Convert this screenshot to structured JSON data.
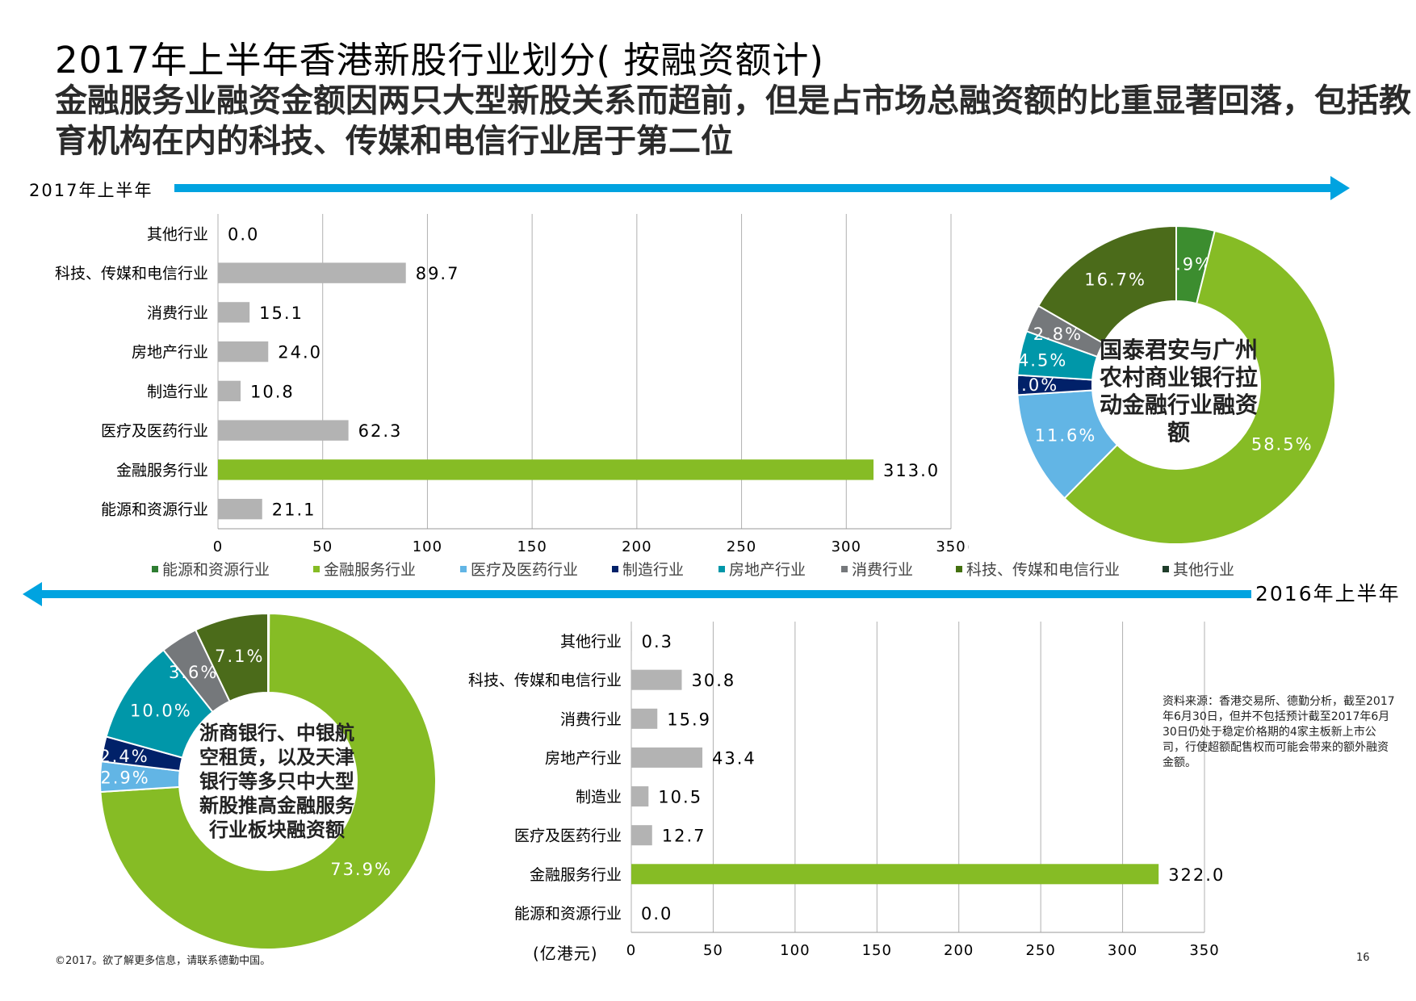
{
  "title": "2017年上半年香港新股行业划分( 按融资额计)",
  "subtitle": "金融服务业融资金额因两只大型新股关系而超前，但是占市场总融资额的比重显著回落，包括教育机构在内的科技、传媒和电信行业居于第二位",
  "section_2017_label": "2017年上半年",
  "section_2016_label": "2016年上半年",
  "unit_label_2017": "(亿港元)",
  "unit_label_2016": "(亿港元)",
  "legend": [
    {
      "name": "能源和资源行业",
      "color": "#2e7d32"
    },
    {
      "name": "金融服务行业",
      "color": "#86bc25"
    },
    {
      "name": "医疗及医药行业",
      "color": "#62b5e5"
    },
    {
      "name": "制造行业",
      "color": "#012169"
    },
    {
      "name": "房地产行业",
      "color": "#0097a9"
    },
    {
      "name": "消费行业",
      "color": "#75787b"
    },
    {
      "name": "科技、传媒和电信行业",
      "color": "#43700f"
    },
    {
      "name": "其他行业",
      "color": "#1f3d2a"
    }
  ],
  "center_2017": "国泰君安与广州农村商业银行拉动金融行业融资额",
  "center_2016": "浙商银行、中银航空租赁，以及天津银行等多只中大型新股推高金融服务行业板块融资额",
  "source_note": "资料来源：香港交易所、德勤分析，截至2017年6月30日，但并不包括预计截至2017年6月30日仍处于稳定价格期的4家主板新上市公司，行使超额配售权而可能会带来的额外融资金额。",
  "footer": "©2017。欲了解更多信息，请联系德勤中国。",
  "page_number": "16",
  "chart_data": [
    {
      "type": "bar",
      "orientation": "horizontal",
      "title": "2017年上半年",
      "categories": [
        "其他行业",
        "科技、传媒和电信行业",
        "消费行业",
        "房地产行业",
        "制造行业",
        "医疗及医药行业",
        "金融服务行业",
        "能源和资源行业"
      ],
      "values": [
        0.0,
        89.7,
        15.1,
        24.0,
        10.8,
        62.3,
        313.0,
        21.1
      ],
      "labels": [
        "0.0",
        "89.7",
        "15.1",
        "24.0",
        "10.8",
        "62.3",
        "313.0",
        "21.1"
      ],
      "highlight_category": "金融服务行业",
      "bar_color": "#b3b3b3",
      "highlight_color": "#86bc25",
      "xlim": [
        0,
        350
      ],
      "xticks": [
        0,
        50,
        100,
        150,
        200,
        250,
        300,
        350
      ],
      "xlabel": "(亿港元)",
      "grid": true
    },
    {
      "type": "pie",
      "style": "donut",
      "title": "2017年上半年",
      "slices": [
        {
          "name": "能源和资源行业",
          "value": 3.9,
          "label": "3.9%",
          "color": "#3c8d2f"
        },
        {
          "name": "金融服务行业",
          "value": 58.5,
          "label": "58.5%",
          "color": "#86bc25"
        },
        {
          "name": "医疗及医药行业",
          "value": 11.6,
          "label": "11.6%",
          "color": "#62b5e5"
        },
        {
          "name": "制造行业",
          "value": 2.0,
          "label": "2.0%",
          "color": "#012169"
        },
        {
          "name": "房地产行业",
          "value": 4.5,
          "label": "4.5%",
          "color": "#0097a9"
        },
        {
          "name": "消费行业",
          "value": 2.8,
          "label": "2.8%",
          "color": "#75787b"
        },
        {
          "name": "科技、传媒和电信行业",
          "value": 16.7,
          "label": "16.7%",
          "color": "#4b6b1a"
        },
        {
          "name": "其他行业",
          "value": 0.0,
          "label": "",
          "color": "#1f3d2a"
        }
      ]
    },
    {
      "type": "pie",
      "style": "donut",
      "title": "2016年上半年",
      "slices": [
        {
          "name": "其他行业",
          "value": 0.1,
          "label": "0.1%",
          "color": "#1f3d2a"
        },
        {
          "name": "金融服务行业",
          "value": 73.9,
          "label": "73.9%",
          "color": "#86bc25"
        },
        {
          "name": "医疗及医药行业",
          "value": 2.9,
          "label": "2.9%",
          "color": "#62b5e5"
        },
        {
          "name": "制造行业",
          "value": 2.4,
          "label": "2.4%",
          "color": "#012169"
        },
        {
          "name": "房地产行业",
          "value": 10.0,
          "label": "10.0%",
          "color": "#0097a9"
        },
        {
          "name": "消费行业",
          "value": 3.6,
          "label": "3.6%",
          "color": "#75787b"
        },
        {
          "name": "科技、传媒和电信行业",
          "value": 7.1,
          "label": "7.1%",
          "color": "#4b6b1a"
        },
        {
          "name": "能源和资源行业",
          "value": 0.0,
          "label": "",
          "color": "#3c8d2f"
        }
      ]
    },
    {
      "type": "bar",
      "orientation": "horizontal",
      "title": "2016年上半年",
      "categories": [
        "其他行业",
        "科技、传媒和电信行业",
        "消费行业",
        "房地产行业",
        "制造业",
        "医疗及医药行业",
        "金融服务行业",
        "能源和资源行业"
      ],
      "values": [
        0.3,
        30.8,
        15.9,
        43.4,
        10.5,
        12.7,
        322.0,
        0.0
      ],
      "labels": [
        "0.3",
        "30.8",
        "15.9",
        "43.4",
        "10.5",
        "12.7",
        "322.0",
        "0.0"
      ],
      "highlight_category": "金融服务行业",
      "bar_color": "#b3b3b3",
      "highlight_color": "#86bc25",
      "xlim": [
        0,
        350
      ],
      "xticks": [
        0,
        50,
        100,
        150,
        200,
        250,
        300,
        350
      ],
      "xlabel": "(亿港元)",
      "grid": true
    }
  ]
}
